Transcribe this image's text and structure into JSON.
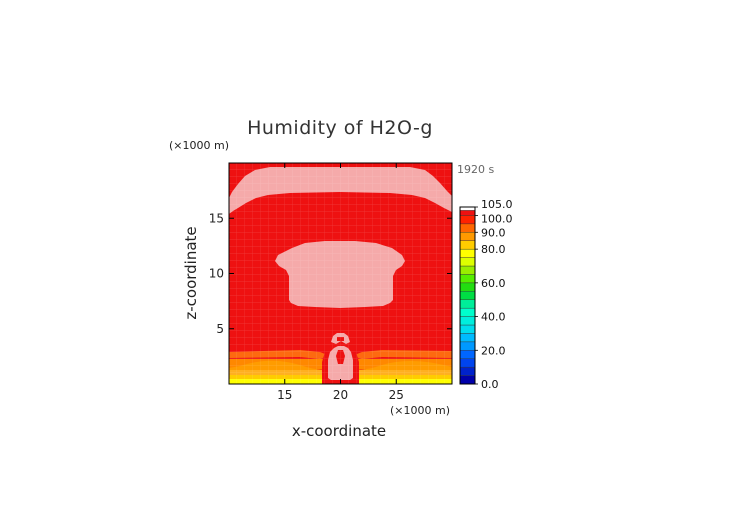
{
  "chart_data": {
    "type": "heatmap",
    "title": "Humidity of H2O-g",
    "xlabel": "x-coordinate",
    "ylabel": "z-coordinate",
    "x_unit": "(×1000 m)",
    "y_unit": "(×1000 m)",
    "time_label": "1920 s",
    "xlim": [
      10,
      30
    ],
    "ylim": [
      0,
      20
    ],
    "x_ticks": [
      15,
      20,
      25
    ],
    "y_ticks": [
      5,
      10,
      15
    ],
    "colorbar": {
      "labels": [
        "105.0",
        "100.0",
        "90.0",
        "80.0",
        "60.0",
        "40.0",
        "20.0",
        "0.0"
      ],
      "range": [
        0,
        105
      ]
    },
    "regions": [
      {
        "name": "background",
        "value": 100,
        "color": "#ee1111"
      },
      {
        "name": "upper-saturated-band",
        "value": 103,
        "color": "#f5aaaa",
        "z_range": [
          16.5,
          19.5
        ]
      },
      {
        "name": "mid-saturated-cloud",
        "value": 103,
        "color": "#f5aaaa",
        "z_range": [
          7.5,
          12.8
        ]
      },
      {
        "name": "surface-plume",
        "value": 103,
        "color": "#f5aaaa",
        "z_range": [
          0.5,
          4.5
        ]
      },
      {
        "name": "boundary-layer-orange",
        "value": 88,
        "color": "#ff8800",
        "z_range": [
          1.5,
          2.5
        ]
      },
      {
        "name": "surface-yellow",
        "value": 72,
        "color": "#ffff00",
        "z_range": [
          0,
          0.6
        ]
      }
    ]
  }
}
